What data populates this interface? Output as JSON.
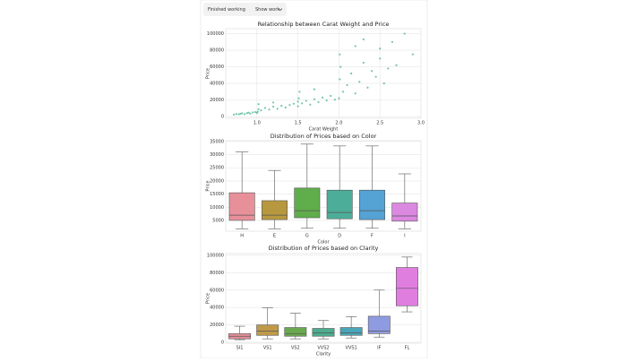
{
  "toolbar": {
    "status": "Finished working",
    "button": "Show work"
  },
  "chart_data": [
    {
      "type": "scatter",
      "title": "Relationship between Carat Weight and Price",
      "x_label": "Carat Weight",
      "y_label": "Price",
      "color": "#1a9e77",
      "grid": true,
      "xlim": [
        0.62,
        3.0
      ],
      "ylim": [
        -2000,
        106000
      ],
      "xticks": [
        {
          "value": 1,
          "label": "1.0"
        },
        {
          "value": 1.5,
          "label": "1.5"
        },
        {
          "value": 2,
          "label": "2.0"
        },
        {
          "value": 2.5,
          "label": "2.5"
        },
        {
          "value": 3,
          "label": "3.0"
        }
      ],
      "yticks": [
        0,
        20000,
        40000,
        60000,
        80000,
        100000
      ],
      "x": [
        0.72,
        0.75,
        0.78,
        0.8,
        0.82,
        0.85,
        0.88,
        0.9,
        0.92,
        0.95,
        0.98,
        1.0,
        1.01,
        1.02,
        1.05,
        1.1,
        1.15,
        1.2,
        1.25,
        1.3,
        1.35,
        1.4,
        1.45,
        1.5,
        1.02,
        1.2,
        1.5,
        1.51,
        1.55,
        1.6,
        1.65,
        1.7,
        1.75,
        1.8,
        1.85,
        1.9,
        1.95,
        1.52,
        1.7,
        2.0,
        2.01,
        2.02,
        2.05,
        2.1,
        2.15,
        2.2,
        2.25,
        2.3,
        2.35,
        2.4,
        2.45,
        2.5,
        2.55,
        2.6,
        2.01,
        2.2,
        2.5,
        2.65,
        2.7,
        2.8,
        2.3,
        2.9
      ],
      "values": [
        2500,
        3200,
        2800,
        3500,
        4000,
        3000,
        4200,
        4800,
        3600,
        5000,
        5500,
        4500,
        6000,
        9000,
        7500,
        10500,
        8500,
        12000,
        9500,
        13000,
        11000,
        14000,
        15500,
        12500,
        15000,
        17000,
        18000,
        22000,
        16000,
        19000,
        14500,
        21000,
        17500,
        23000,
        19500,
        25000,
        20500,
        30000,
        33000,
        22000,
        45000,
        60000,
        30000,
        38000,
        52000,
        28000,
        42000,
        65000,
        35000,
        55000,
        48000,
        70000,
        40000,
        58000,
        75000,
        85000,
        82000,
        90000,
        62000,
        100000,
        93000,
        75000
      ]
    },
    {
      "type": "box",
      "title": "Distribution of Prices based on Color",
      "x_label": "Color",
      "y_label": "Price",
      "grid": true,
      "ylim": [
        900,
        35300
      ],
      "yticks": [
        5000,
        10000,
        15000,
        20000,
        25000,
        30000,
        35000
      ],
      "categories": [
        "H",
        "E",
        "G",
        "D",
        "F",
        "I"
      ],
      "colors": [
        "#e8909a",
        "#b8983e",
        "#5fad4b",
        "#4cad98",
        "#55a2d4",
        "#db88e0"
      ],
      "stats": [
        {
          "min": 1800,
          "q1": 5000,
          "median": 7000,
          "q3": 15500,
          "max": 31000
        },
        {
          "min": 1800,
          "q1": 5300,
          "median": 7000,
          "q3": 12500,
          "max": 24000
        },
        {
          "min": 2000,
          "q1": 6000,
          "median": 8700,
          "q3": 17300,
          "max": 34000
        },
        {
          "min": 2000,
          "q1": 5600,
          "median": 8000,
          "q3": 16500,
          "max": 33300
        },
        {
          "min": 2000,
          "q1": 5300,
          "median": 8700,
          "q3": 16500,
          "max": 33300
        },
        {
          "min": 1800,
          "q1": 4700,
          "median": 6700,
          "q3": 11600,
          "max": 22700
        }
      ]
    },
    {
      "type": "box",
      "title": "Distribution of Prices based on Clarity",
      "x_label": "Clarity",
      "y_label": "Price",
      "grid": true,
      "ylim": [
        -1000,
        102000
      ],
      "yticks": [
        0,
        20000,
        40000,
        60000,
        80000,
        100000
      ],
      "categories": [
        "SI1",
        "VS1",
        "VS2",
        "VVS2",
        "VVS1",
        "IF",
        "FL"
      ],
      "colors": [
        "#e8909a",
        "#c09a48",
        "#6aa84f",
        "#4cad8f",
        "#4aa5b8",
        "#8f9be0",
        "#e07ee0"
      ],
      "stats": [
        {
          "min": 3000,
          "q1": 4000,
          "median": 7000,
          "q3": 10000,
          "max": 18500
        },
        {
          "min": 4000,
          "q1": 8000,
          "median": 13000,
          "q3": 20000,
          "max": 39500
        },
        {
          "min": 4000,
          "q1": 7000,
          "median": 10000,
          "q3": 17000,
          "max": 33500
        },
        {
          "min": 4000,
          "q1": 7000,
          "median": 11000,
          "q3": 16000,
          "max": 25000
        },
        {
          "min": 5000,
          "q1": 8000,
          "median": 11000,
          "q3": 17000,
          "max": 29500
        },
        {
          "min": 6000,
          "q1": 10000,
          "median": 13000,
          "q3": 30000,
          "max": 60000
        },
        {
          "min": 35000,
          "q1": 42000,
          "median": 62000,
          "q3": 86000,
          "max": 98000
        }
      ]
    }
  ]
}
